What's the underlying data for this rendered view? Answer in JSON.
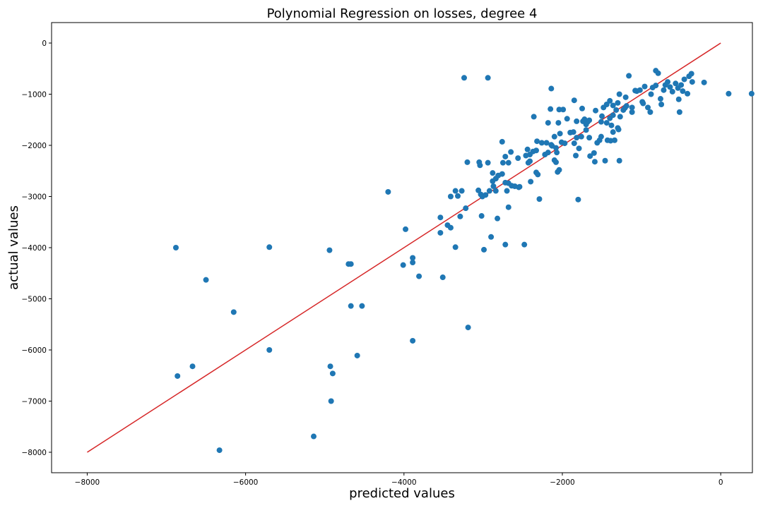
{
  "chart_data": {
    "type": "scatter",
    "title": "Polynomial Regression on losses, degree 4",
    "xlabel": "predicted values",
    "ylabel": "actual values",
    "xlim": [
      -8450,
      400
    ],
    "ylim": [
      -8400,
      400
    ],
    "xticks": [
      -8000,
      -6000,
      -4000,
      -2000,
      0
    ],
    "xtick_labels": [
      "−8000",
      "−6000",
      "−4000",
      "−2000",
      "0"
    ],
    "yticks": [
      0,
      -1000,
      -2000,
      -3000,
      -4000,
      -5000,
      -6000,
      -7000,
      -8000
    ],
    "ytick_labels": [
      "0",
      "−1000",
      "−2000",
      "−3000",
      "−4000",
      "−5000",
      "−6000",
      "−7000",
      "−8000"
    ],
    "grid": false,
    "colors": {
      "points": "#1f77b4",
      "line": "#d62728"
    },
    "line": {
      "x": [
        -8000,
        0
      ],
      "y": [
        -8000,
        0
      ]
    },
    "points": [
      [
        -6880,
        -4000
      ],
      [
        -6500,
        -4630
      ],
      [
        -6150,
        -5260
      ],
      [
        -5700,
        -3990
      ],
      [
        -5700,
        -6000
      ],
      [
        -6860,
        -6510
      ],
      [
        -6670,
        -6320
      ],
      [
        -6330,
        -7960
      ],
      [
        -5140,
        -7690
      ],
      [
        -4940,
        -4050
      ],
      [
        -4670,
        -4320
      ],
      [
        -4700,
        -4320
      ],
      [
        -4670,
        -5140
      ],
      [
        -4530,
        -5140
      ],
      [
        -4930,
        -6320
      ],
      [
        -4900,
        -6460
      ],
      [
        -4920,
        -7000
      ],
      [
        -4590,
        -6110
      ],
      [
        -4200,
        -2910
      ],
      [
        -3980,
        -3640
      ],
      [
        -4010,
        -4340
      ],
      [
        -3890,
        -4200
      ],
      [
        -3890,
        -4290
      ],
      [
        -3810,
        -4560
      ],
      [
        -3890,
        -5820
      ],
      [
        -3190,
        -5560
      ],
      [
        -3540,
        -3410
      ],
      [
        -3540,
        -3710
      ],
      [
        -3450,
        -3560
      ],
      [
        -3410,
        -3610
      ],
      [
        -3510,
        -4580
      ],
      [
        -3350,
        -3990
      ],
      [
        -3240,
        -680
      ],
      [
        -2940,
        -680
      ],
      [
        -3410,
        -3000
      ],
      [
        -3320,
        -2990
      ],
      [
        -3350,
        -2890
      ],
      [
        -3270,
        -2890
      ],
      [
        -3200,
        -2330
      ],
      [
        -3050,
        -2330
      ],
      [
        -3040,
        -2390
      ],
      [
        -2940,
        -2340
      ],
      [
        -3060,
        -2880
      ],
      [
        -3030,
        -2960
      ],
      [
        -3010,
        -3000
      ],
      [
        -2970,
        -2970
      ],
      [
        -3020,
        -3380
      ],
      [
        -3220,
        -3230
      ],
      [
        -3290,
        -3390
      ],
      [
        -2920,
        -2890
      ],
      [
        -2870,
        -2800
      ],
      [
        -2880,
        -2700
      ],
      [
        -2840,
        -2650
      ],
      [
        -2810,
        -2590
      ],
      [
        -2880,
        -2540
      ],
      [
        -2760,
        -2560
      ],
      [
        -2750,
        -2340
      ],
      [
        -2720,
        -2220
      ],
      [
        -2760,
        -1930
      ],
      [
        -2680,
        -2340
      ],
      [
        -2650,
        -2130
      ],
      [
        -2840,
        -2890
      ],
      [
        -2820,
        -3430
      ],
      [
        -2700,
        -2890
      ],
      [
        -2720,
        -2730
      ],
      [
        -2680,
        -2740
      ],
      [
        -2640,
        -2790
      ],
      [
        -2600,
        -2800
      ],
      [
        -2540,
        -2810
      ],
      [
        -2560,
        -2250
      ],
      [
        -2460,
        -2200
      ],
      [
        -2440,
        -2080
      ],
      [
        -2410,
        -2310
      ],
      [
        -2430,
        -2340
      ],
      [
        -2410,
        -2180
      ],
      [
        -2370,
        -2120
      ],
      [
        -2330,
        -2100
      ],
      [
        -2400,
        -2710
      ],
      [
        -2330,
        -2530
      ],
      [
        -2310,
        -2570
      ],
      [
        -2290,
        -3050
      ],
      [
        -2360,
        -1440
      ],
      [
        -2320,
        -1920
      ],
      [
        -2260,
        -1950
      ],
      [
        -2220,
        -2180
      ],
      [
        -2180,
        -2140
      ],
      [
        -2200,
        -1950
      ],
      [
        -2180,
        -1560
      ],
      [
        -2140,
        -1990
      ],
      [
        -2130,
        -2010
      ],
      [
        -2150,
        -1290
      ],
      [
        -2100,
        -1830
      ],
      [
        -2080,
        -2050
      ],
      [
        -2070,
        -2140
      ],
      [
        -2100,
        -2290
      ],
      [
        -2040,
        -2480
      ],
      [
        -2060,
        -2520
      ],
      [
        -2040,
        -1300
      ],
      [
        -1990,
        -1300
      ],
      [
        -2050,
        -1560
      ],
      [
        -2030,
        -1770
      ],
      [
        -2010,
        -1940
      ],
      [
        -1970,
        -1960
      ],
      [
        -1940,
        -1480
      ],
      [
        -1900,
        -1750
      ],
      [
        -1860,
        -1740
      ],
      [
        -1850,
        -1960
      ],
      [
        -1820,
        -1530
      ],
      [
        -1820,
        -1850
      ],
      [
        -1790,
        -2060
      ],
      [
        -1760,
        -1830
      ],
      [
        -1740,
        -1530
      ],
      [
        -1720,
        -1490
      ],
      [
        -1700,
        -1700
      ],
      [
        -1700,
        -1590
      ],
      [
        -1680,
        -1540
      ],
      [
        -1660,
        -1510
      ],
      [
        -1650,
        -2210
      ],
      [
        -1600,
        -2150
      ],
      [
        -1560,
        -1950
      ],
      [
        -1530,
        -1900
      ],
      [
        -1510,
        -1830
      ],
      [
        -1510,
        -1540
      ],
      [
        -1500,
        -1430
      ],
      [
        -1480,
        -1260
      ],
      [
        -1440,
        -1200
      ],
      [
        -1400,
        -1130
      ],
      [
        -1440,
        -1560
      ],
      [
        -1400,
        -1470
      ],
      [
        -1380,
        -1610
      ],
      [
        -1360,
        -1410
      ],
      [
        -1360,
        -1220
      ],
      [
        -1320,
        -1310
      ],
      [
        -1300,
        -1170
      ],
      [
        -1280,
        -1000
      ],
      [
        -1270,
        -1440
      ],
      [
        -1230,
        -1310
      ],
      [
        -1210,
        -1270
      ],
      [
        -1190,
        -1230
      ],
      [
        -1160,
        -640
      ],
      [
        -1120,
        -1260
      ],
      [
        -1080,
        -930
      ],
      [
        -1020,
        -920
      ],
      [
        -990,
        -1150
      ],
      [
        -980,
        -1180
      ],
      [
        -920,
        -1260
      ],
      [
        -890,
        -1350
      ],
      [
        -880,
        -1000
      ],
      [
        -860,
        -870
      ],
      [
        -820,
        -830
      ],
      [
        -820,
        -540
      ],
      [
        -790,
        -590
      ],
      [
        -760,
        -1090
      ],
      [
        -750,
        -1200
      ],
      [
        -720,
        -920
      ],
      [
        -700,
        -820
      ],
      [
        -670,
        -760
      ],
      [
        -640,
        -860
      ],
      [
        -610,
        -950
      ],
      [
        -570,
        -790
      ],
      [
        -540,
        -880
      ],
      [
        -530,
        -1100
      ],
      [
        -520,
        -1350
      ],
      [
        -500,
        -820
      ],
      [
        -480,
        -940
      ],
      [
        -460,
        -710
      ],
      [
        -420,
        -990
      ],
      [
        -400,
        -650
      ],
      [
        -370,
        -600
      ],
      [
        -360,
        -760
      ],
      [
        -210,
        -770
      ],
      [
        -1060,
        -940
      ],
      [
        -960,
        -850
      ],
      [
        -1120,
        -1350
      ],
      [
        -1580,
        -1320
      ],
      [
        -1850,
        -1120
      ],
      [
        -1750,
        -1280
      ],
      [
        -1280,
        -2300
      ],
      [
        -1460,
        -2300
      ],
      [
        -1430,
        -1900
      ],
      [
        -1360,
        -1740
      ],
      [
        -2550,
        -2820
      ],
      [
        -2720,
        -3940
      ],
      [
        -2480,
        -3940
      ],
      [
        -2900,
        -3790
      ],
      [
        -2990,
        -4040
      ],
      [
        -2680,
        -3210
      ],
      [
        -2140,
        -890
      ],
      [
        -2080,
        -2330
      ],
      [
        -1800,
        -3060
      ],
      [
        100,
        -990
      ],
      [
        390,
        -990
      ],
      [
        -1290,
        -1690
      ],
      [
        -1300,
        -1660
      ],
      [
        -1340,
        -1900
      ],
      [
        -1390,
        -1910
      ],
      [
        -1590,
        -2320
      ],
      [
        -1660,
        -1850
      ],
      [
        -1830,
        -2200
      ],
      [
        -1200,
        -1060
      ]
    ]
  }
}
